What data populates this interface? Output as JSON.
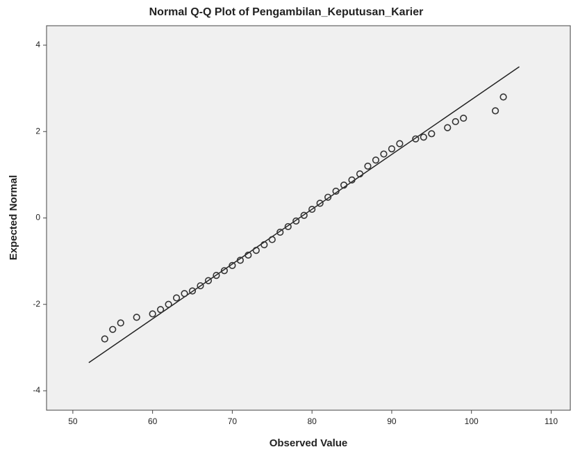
{
  "chart_data": {
    "type": "scatter",
    "title": "Normal Q-Q Plot of Pengambilan_Keputusan_Karier",
    "x_label": "Observed Value",
    "y_label": "Expected Normal",
    "x": [
      54,
      55,
      56,
      58,
      60,
      61,
      62,
      63,
      64,
      65,
      66,
      67,
      68,
      69,
      70,
      71,
      72,
      73,
      74,
      75,
      76,
      77,
      78,
      79,
      80,
      81,
      82,
      83,
      84,
      85,
      86,
      87,
      88,
      89,
      90,
      91,
      93,
      94,
      95,
      97,
      98,
      99,
      103,
      104
    ],
    "values": [
      -2.8,
      -2.58,
      -2.43,
      -2.3,
      -2.22,
      -2.12,
      -2.0,
      -1.85,
      -1.75,
      -1.69,
      -1.57,
      -1.45,
      -1.33,
      -1.22,
      -1.1,
      -0.98,
      -0.86,
      -0.75,
      -0.62,
      -0.5,
      -0.33,
      -0.2,
      -0.07,
      0.06,
      0.2,
      0.34,
      0.48,
      0.62,
      0.76,
      0.88,
      1.02,
      1.2,
      1.34,
      1.48,
      1.6,
      1.72,
      1.83,
      1.87,
      1.95,
      2.09,
      2.23,
      2.31,
      2.48,
      2.8
    ],
    "color": "#333333",
    "reference_line": {
      "x": [
        52,
        106
      ],
      "y": [
        -3.35,
        3.5
      ],
      "color": "#222222"
    },
    "xlim": [
      46.7,
      112.4
    ],
    "xticks": [
      50,
      60,
      70,
      80,
      90,
      100,
      110
    ],
    "ylim": [
      -4.45,
      4.45
    ],
    "yticks": [
      -4,
      -2,
      0,
      2,
      4
    ],
    "grid": false
  }
}
